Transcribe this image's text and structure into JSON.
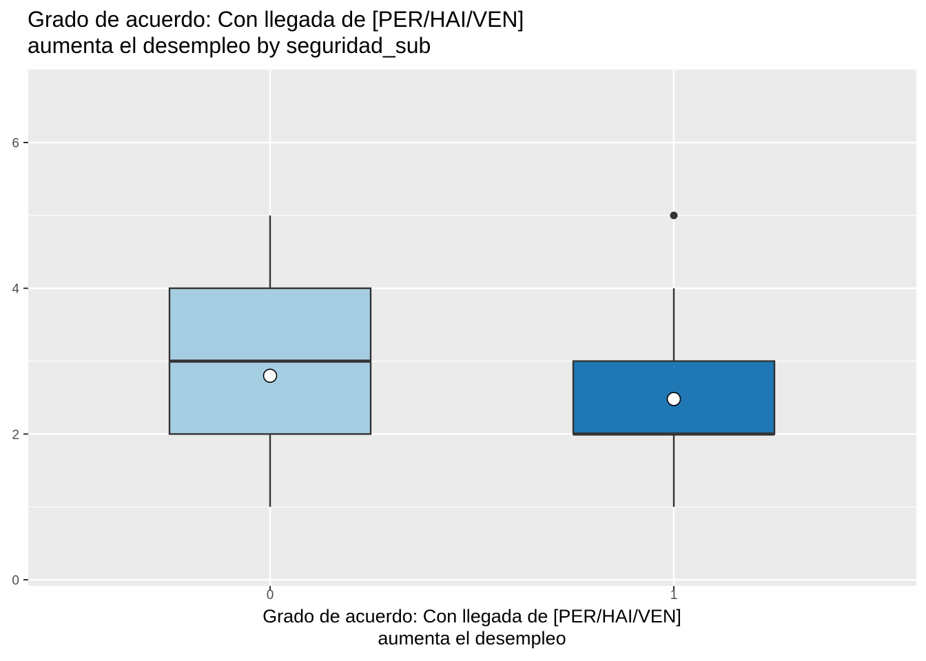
{
  "chart_data": {
    "type": "box",
    "title_lines": [
      "Grado de acuerdo: Con llegada de [PER/HAI/VEN]",
      "aumenta el desempleo by seguridad_sub"
    ],
    "xlabel_lines": [
      "Grado de acuerdo: Con llegada de [PER/HAI/VEN]",
      "aumenta el desempleo"
    ],
    "ylabel": "",
    "ylim": [
      0,
      7
    ],
    "yticks": [
      "0",
      "2",
      "4",
      "6"
    ],
    "ytick_values": [
      0,
      2,
      4,
      6
    ],
    "grid": true,
    "categories": [
      "0",
      "1"
    ],
    "boxes": [
      {
        "category": "0",
        "whisker_low": 1,
        "q1": 2,
        "median": 3,
        "q3": 4,
        "whisker_high": 5,
        "mean": 2.8,
        "outliers": [],
        "fill": "#a6cee3"
      },
      {
        "category": "1",
        "whisker_low": 1,
        "q1": 2,
        "median": 2,
        "q3": 3,
        "whisker_high": 4,
        "mean": 2.48,
        "outliers": [
          5
        ],
        "fill": "#1f78b4"
      }
    ],
    "colors": {
      "panel": "#ebebeb",
      "grid": "#ffffff",
      "box_line": "#333333",
      "mean_fill": "#ffffff"
    }
  }
}
